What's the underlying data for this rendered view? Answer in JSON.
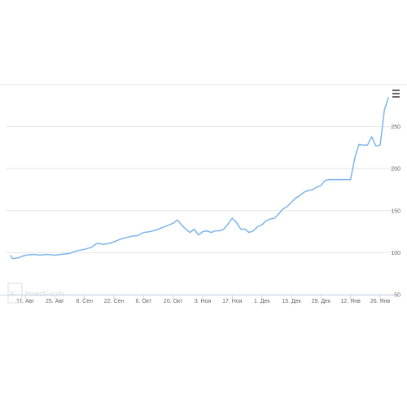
{
  "chart_data": {
    "type": "line",
    "title": "",
    "xlabel": "",
    "ylabel": "",
    "x_tick_labels": [
      "11. Авг",
      "25. Авг",
      "8. Сен",
      "22. Сен",
      "6. Окт",
      "20. Окт",
      "3. Ноя",
      "17. Ноя",
      "1. Дек",
      "15. Дек",
      "29. Дек",
      "12. Янв",
      "26. Янв"
    ],
    "y_ticks": [
      50,
      100,
      150,
      200,
      250
    ],
    "ylim": [
      50,
      300
    ],
    "grid": true,
    "legend": "none",
    "series": [
      {
        "color": "#7cb5ec",
        "points": [
          [
            "2015-08-04",
            97
          ],
          [
            "2015-08-05",
            93
          ],
          [
            "2015-08-08",
            94
          ],
          [
            "2015-08-11",
            97
          ],
          [
            "2015-08-15",
            98
          ],
          [
            "2015-08-18",
            97
          ],
          [
            "2015-08-21",
            98
          ],
          [
            "2015-08-25",
            97
          ],
          [
            "2015-08-28",
            98
          ],
          [
            "2015-09-01",
            99
          ],
          [
            "2015-09-04",
            102
          ],
          [
            "2015-09-08",
            104
          ],
          [
            "2015-09-11",
            106
          ],
          [
            "2015-09-14",
            111
          ],
          [
            "2015-09-17",
            110
          ],
          [
            "2015-09-20",
            111
          ],
          [
            "2015-09-22",
            113
          ],
          [
            "2015-09-24",
            115
          ],
          [
            "2015-09-26",
            117
          ],
          [
            "2015-09-28",
            118
          ],
          [
            "2015-10-01",
            120
          ],
          [
            "2015-10-03",
            120
          ],
          [
            "2015-10-06",
            124
          ],
          [
            "2015-10-09",
            125
          ],
          [
            "2015-10-12",
            127
          ],
          [
            "2015-10-15",
            130
          ],
          [
            "2015-10-18",
            133
          ],
          [
            "2015-10-20",
            135
          ],
          [
            "2015-10-22",
            139
          ],
          [
            "2015-10-24",
            133
          ],
          [
            "2015-10-26",
            128
          ],
          [
            "2015-10-28",
            124
          ],
          [
            "2015-10-30",
            128
          ],
          [
            "2015-11-01",
            121
          ],
          [
            "2015-11-03",
            125
          ],
          [
            "2015-11-05",
            126
          ],
          [
            "2015-11-07",
            124
          ],
          [
            "2015-11-09",
            126
          ],
          [
            "2015-11-11",
            126
          ],
          [
            "2015-11-13",
            128
          ],
          [
            "2015-11-15",
            134
          ],
          [
            "2015-11-17",
            141
          ],
          [
            "2015-11-19",
            136
          ],
          [
            "2015-11-21",
            128
          ],
          [
            "2015-11-23",
            128
          ],
          [
            "2015-11-25",
            124
          ],
          [
            "2015-11-27",
            126
          ],
          [
            "2015-11-29",
            131
          ],
          [
            "2015-12-01",
            133
          ],
          [
            "2015-12-03",
            138
          ],
          [
            "2015-12-05",
            140
          ],
          [
            "2015-12-07",
            141
          ],
          [
            "2015-12-09",
            146
          ],
          [
            "2015-12-11",
            152
          ],
          [
            "2015-12-13",
            155
          ],
          [
            "2015-12-15",
            160
          ],
          [
            "2015-12-17",
            165
          ],
          [
            "2015-12-19",
            168
          ],
          [
            "2015-12-21",
            172
          ],
          [
            "2015-12-23",
            174
          ],
          [
            "2015-12-25",
            175
          ],
          [
            "2015-12-27",
            178
          ],
          [
            "2015-12-29",
            180
          ],
          [
            "2015-12-31",
            186
          ],
          [
            "2016-01-02",
            187
          ],
          [
            "2016-01-04",
            187
          ],
          [
            "2016-01-06",
            187
          ],
          [
            "2016-01-08",
            187
          ],
          [
            "2016-01-10",
            187
          ],
          [
            "2016-01-12",
            187
          ],
          [
            "2016-01-14",
            213
          ],
          [
            "2016-01-16",
            229
          ],
          [
            "2016-01-18",
            228
          ],
          [
            "2016-01-20",
            228
          ],
          [
            "2016-01-22",
            238
          ],
          [
            "2016-01-24",
            227
          ],
          [
            "2016-01-26",
            228
          ],
          [
            "2016-01-28",
            270
          ],
          [
            "2016-01-30",
            285
          ]
        ]
      }
    ]
  },
  "watermark": {
    "text": "InvestFunds",
    "logo_letters": "IF"
  },
  "menu": {
    "icon": "hamburger-menu-icon"
  }
}
